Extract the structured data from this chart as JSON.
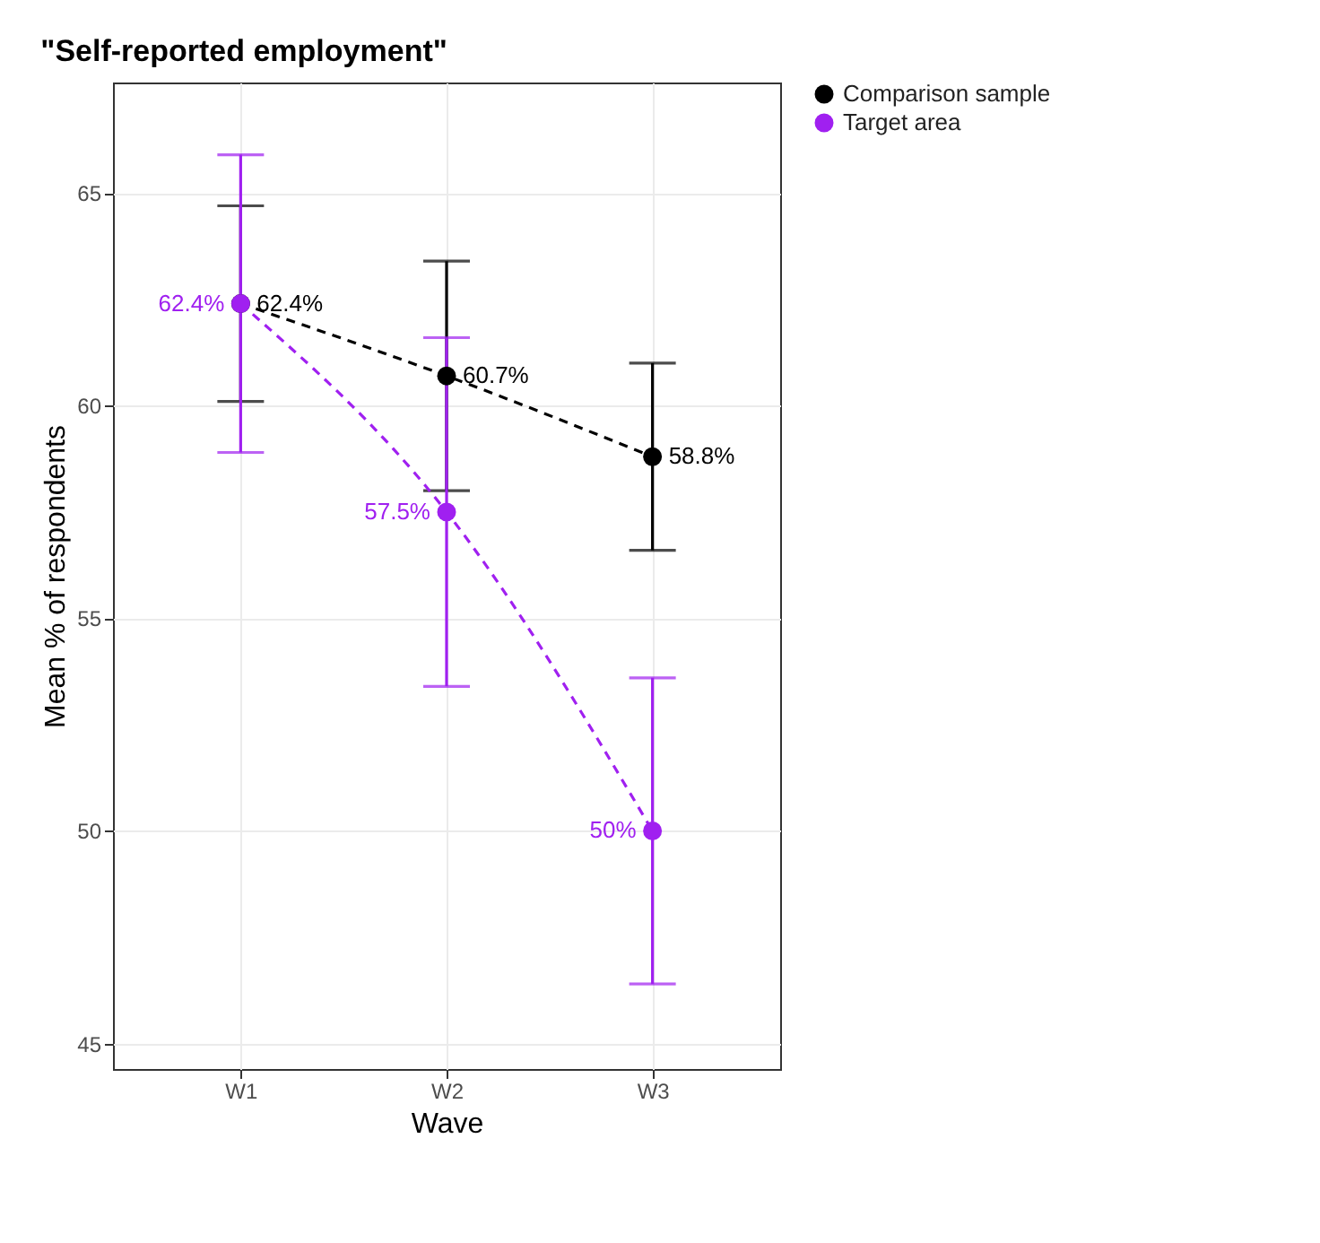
{
  "chart_data": {
    "type": "line",
    "title": "\"Self-reported employment\"",
    "xlabel": "Wave",
    "ylabel": "Mean % of respondents",
    "categories": [
      "W1",
      "W2",
      "W3"
    ],
    "series": [
      {
        "name": "Comparison sample",
        "color": "#000000",
        "values": [
          62.4,
          60.7,
          58.8
        ],
        "errors": [
          [
            60.1,
            64.7
          ],
          [
            58.0,
            63.4
          ],
          [
            56.6,
            61.0
          ]
        ],
        "value_labels": [
          "62.4%",
          "60.7%",
          "58.8%"
        ]
      },
      {
        "name": "Target area",
        "color": "#a020f0",
        "values": [
          62.4,
          57.5,
          50.0
        ],
        "errors": [
          [
            58.9,
            65.9
          ],
          [
            53.4,
            61.6
          ],
          [
            46.4,
            53.6
          ]
        ],
        "value_labels": [
          "62.4%",
          "57.5%",
          "50%"
        ]
      }
    ],
    "ylim": [
      44.4,
      67.6
    ],
    "yticks": [
      45,
      50,
      55,
      60,
      65
    ],
    "grid": true,
    "legend": "right",
    "marker": "circle",
    "line_style": "dashed"
  }
}
